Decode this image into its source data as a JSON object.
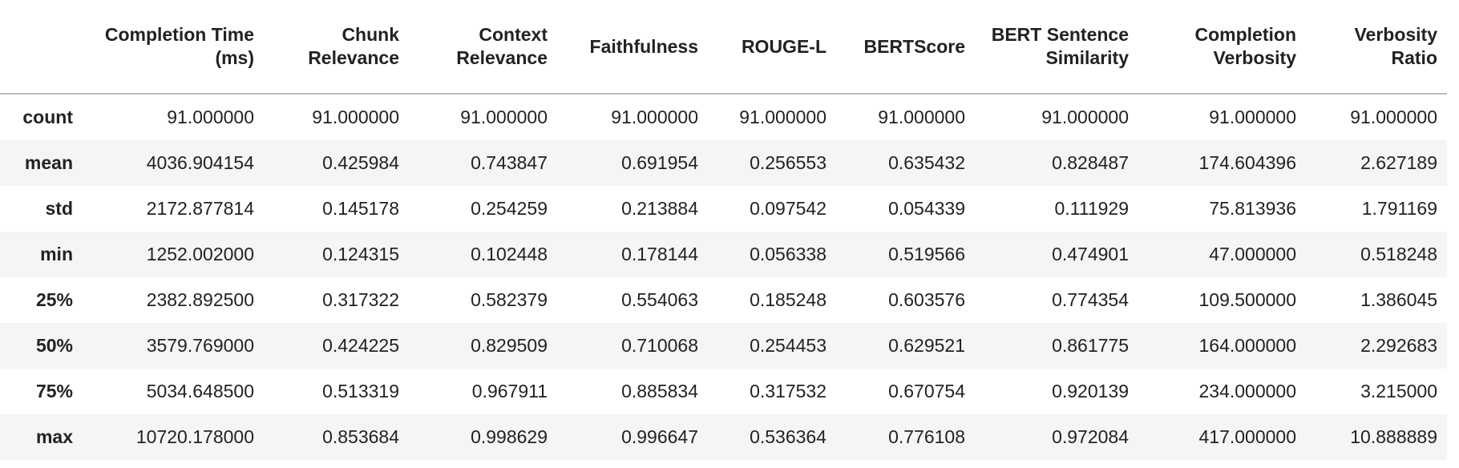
{
  "table": {
    "columns": [
      "",
      "Completion Time (ms)",
      "Chunk Relevance",
      "Context Relevance",
      "Faithfulness",
      "ROUGE-L",
      "BERTScore",
      "BERT Sentence Similarity",
      "Completion Verbosity",
      "Verbosity Ratio"
    ],
    "rows": [
      {
        "label": "count",
        "values": [
          "91.000000",
          "91.000000",
          "91.000000",
          "91.000000",
          "91.000000",
          "91.000000",
          "91.000000",
          "91.000000",
          "91.000000"
        ]
      },
      {
        "label": "mean",
        "values": [
          "4036.904154",
          "0.425984",
          "0.743847",
          "0.691954",
          "0.256553",
          "0.635432",
          "0.828487",
          "174.604396",
          "2.627189"
        ]
      },
      {
        "label": "std",
        "values": [
          "2172.877814",
          "0.145178",
          "0.254259",
          "0.213884",
          "0.097542",
          "0.054339",
          "0.111929",
          "75.813936",
          "1.791169"
        ]
      },
      {
        "label": "min",
        "values": [
          "1252.002000",
          "0.124315",
          "0.102448",
          "0.178144",
          "0.056338",
          "0.519566",
          "0.474901",
          "47.000000",
          "0.518248"
        ]
      },
      {
        "label": "25%",
        "values": [
          "2382.892500",
          "0.317322",
          "0.582379",
          "0.554063",
          "0.185248",
          "0.603576",
          "0.774354",
          "109.500000",
          "1.386045"
        ]
      },
      {
        "label": "50%",
        "values": [
          "3579.769000",
          "0.424225",
          "0.829509",
          "0.710068",
          "0.254453",
          "0.629521",
          "0.861775",
          "164.000000",
          "2.292683"
        ]
      },
      {
        "label": "75%",
        "values": [
          "5034.648500",
          "0.513319",
          "0.967911",
          "0.885834",
          "0.317532",
          "0.670754",
          "0.920139",
          "234.000000",
          "3.215000"
        ]
      },
      {
        "label": "max",
        "values": [
          "10720.178000",
          "0.853684",
          "0.998629",
          "0.996647",
          "0.536364",
          "0.776108",
          "0.972084",
          "417.000000",
          "10.888889"
        ]
      }
    ]
  }
}
